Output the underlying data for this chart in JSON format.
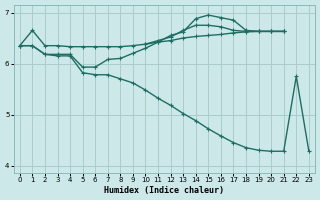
{
  "xlabel": "Humidex (Indice chaleur)",
  "xlim": [
    -0.5,
    23.5
  ],
  "ylim": [
    3.85,
    7.15
  ],
  "yticks": [
    4,
    5,
    6,
    7
  ],
  "xticks": [
    0,
    1,
    2,
    3,
    4,
    5,
    6,
    7,
    8,
    9,
    10,
    11,
    12,
    13,
    14,
    15,
    16,
    17,
    18,
    19,
    20,
    21,
    22,
    23
  ],
  "bg_color": "#cce8e8",
  "grid_color": "#aacccc",
  "line_color": "#1e6e64",
  "line_width": 1.0,
  "marker": "+",
  "marker_size": 3.5,
  "series": [
    {
      "name": "line1_top_flat",
      "x": [
        0,
        1,
        2,
        3,
        4,
        5,
        6,
        7,
        8,
        9,
        10,
        11,
        12,
        13,
        14,
        15,
        16,
        17,
        18,
        19,
        20,
        21
      ],
      "y": [
        6.35,
        6.65,
        6.35,
        6.35,
        6.33,
        6.33,
        6.33,
        6.33,
        6.33,
        6.35,
        6.38,
        6.42,
        6.45,
        6.5,
        6.53,
        6.55,
        6.57,
        6.6,
        6.62,
        6.63,
        6.63,
        6.63
      ]
    },
    {
      "name": "line2_bell",
      "x": [
        0,
        1,
        2,
        3,
        4,
        5,
        6,
        7,
        8,
        9,
        10,
        11,
        12,
        13,
        14,
        15,
        16,
        17,
        18,
        19,
        20,
        21
      ],
      "y": [
        6.35,
        6.35,
        6.18,
        6.18,
        6.18,
        5.93,
        5.93,
        6.08,
        6.1,
        6.2,
        6.3,
        6.42,
        6.55,
        6.62,
        6.88,
        6.95,
        6.9,
        6.85,
        6.65,
        6.63,
        6.63,
        6.63
      ]
    },
    {
      "name": "line3_arc",
      "x": [
        10,
        11,
        12,
        13,
        14,
        15,
        16,
        17,
        18,
        19,
        20,
        21
      ],
      "y": [
        6.38,
        6.45,
        6.52,
        6.65,
        6.75,
        6.75,
        6.72,
        6.65,
        6.63,
        6.63,
        6.63,
        6.63
      ]
    },
    {
      "name": "line4_diagonal",
      "x": [
        0,
        1,
        2,
        3,
        4,
        5,
        6,
        7,
        8,
        9,
        10,
        11,
        12,
        13,
        14,
        15,
        16,
        17,
        18,
        19,
        20,
        21,
        22,
        23
      ],
      "y": [
        6.35,
        6.35,
        6.18,
        6.15,
        6.15,
        5.82,
        5.78,
        5.78,
        5.7,
        5.62,
        5.48,
        5.32,
        5.18,
        5.02,
        4.88,
        4.72,
        4.58,
        4.45,
        4.35,
        4.3,
        4.28,
        4.28,
        5.75,
        4.28
      ]
    }
  ]
}
